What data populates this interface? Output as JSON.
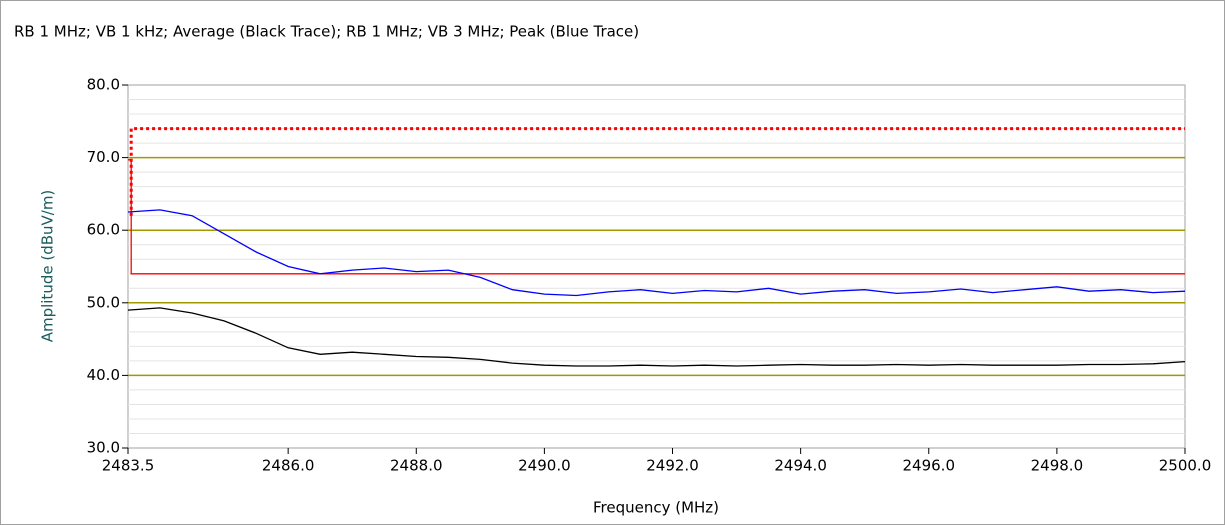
{
  "chart_data": {
    "type": "line",
    "title": "RB 1 MHz; VB 1 kHz; Average (Black Trace); RB 1 MHz; VB 3 MHz; Peak (Blue Trace)",
    "xlabel": "Frequency (MHz)",
    "ylabel": "Amplitude (dBuV/m)",
    "x": [
      2483.5,
      2484,
      2484.5,
      2485,
      2485.5,
      2486,
      2486.5,
      2487,
      2487.5,
      2488,
      2488.5,
      2489,
      2489.5,
      2490,
      2490.5,
      2491,
      2491.5,
      2492,
      2492.5,
      2493,
      2493.5,
      2494,
      2494.5,
      2495,
      2495.5,
      2496,
      2496.5,
      2497,
      2497.5,
      2498,
      2498.5,
      2499,
      2499.5,
      2500
    ],
    "series": [
      {
        "color": "#0000ff",
        "values": [
          62.5,
          62.8,
          62,
          59.5,
          57,
          55,
          54,
          54.5,
          54.8,
          54.3,
          54.5,
          53.5,
          51.8,
          51.2,
          51,
          51.5,
          51.8,
          51.3,
          51.7,
          51.5,
          52,
          51.2,
          51.6,
          51.8,
          51.3,
          51.5,
          51.9,
          51.4,
          51.8,
          52.2,
          51.6,
          51.8,
          51.4,
          51.6
        ]
      },
      {
        "color": "#000000",
        "values": [
          49,
          49.3,
          48.6,
          47.5,
          45.8,
          43.8,
          42.9,
          43.2,
          42.9,
          42.6,
          42.5,
          42.2,
          41.7,
          41.4,
          41.3,
          41.3,
          41.4,
          41.3,
          41.4,
          41.3,
          41.4,
          41.5,
          41.4,
          41.4,
          41.5,
          41.4,
          41.5,
          41.4,
          41.4,
          41.4,
          41.5,
          41.5,
          41.6,
          41.9
        ]
      }
    ],
    "limit_lines": [
      {
        "color": "#ff0000",
        "dashed": true,
        "x": [
          2483.55,
          2483.55,
          2500
        ],
        "values": [
          62,
          74,
          74
        ]
      },
      {
        "color": "#ff0000",
        "dashed": false,
        "x": [
          2483.5,
          2483.55,
          2483.55,
          2500
        ],
        "values": [
          69.7,
          69.7,
          54,
          54
        ]
      }
    ],
    "xlim": [
      2483.5,
      2500
    ],
    "xticks": [
      2483.5,
      {
        "value": 2486,
        "label": "2486.0"
      },
      {
        "value": 2488,
        "label": "2488.0"
      },
      {
        "value": 2490,
        "label": "2490.0"
      },
      {
        "value": 2492,
        "label": "2492.0"
      },
      {
        "value": 2494,
        "label": "2494.0"
      },
      {
        "value": 2496,
        "label": "2496.0"
      },
      {
        "value": 2498,
        "label": "2498.0"
      },
      {
        "value": 2500,
        "label": "2500.0"
      }
    ],
    "ylim": [
      30,
      80
    ],
    "yticks": [
      {
        "value": 30,
        "label": "30.0"
      },
      {
        "value": 40,
        "label": "40.0"
      },
      {
        "value": 50,
        "label": "50.0"
      },
      {
        "value": 60,
        "label": "60.0"
      },
      {
        "value": 70,
        "label": "70.0"
      },
      {
        "value": 80,
        "label": "80.0"
      }
    ],
    "yminorticks": [
      32,
      34,
      36,
      38,
      42,
      44,
      46,
      48,
      52,
      54,
      56,
      58,
      62,
      64,
      66,
      68,
      72,
      74,
      76,
      78
    ],
    "grid": true,
    "grid_color": "#a09a00"
  }
}
